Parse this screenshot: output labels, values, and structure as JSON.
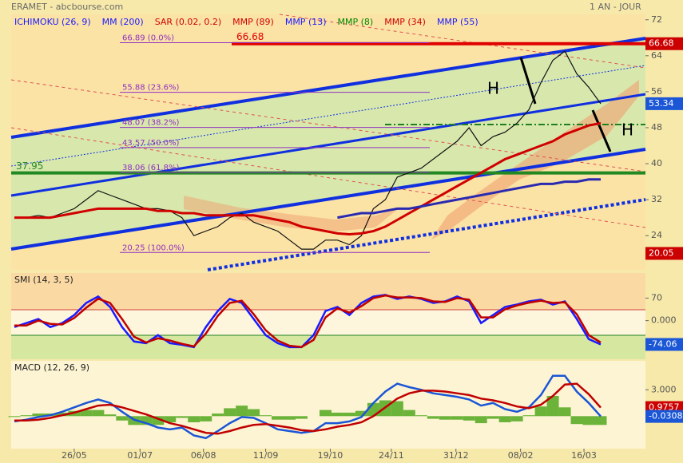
{
  "header": {
    "title": "ERAMET - abcbourse.com",
    "period": "1 AN - JOUR"
  },
  "chart_data": [
    {
      "type": "line",
      "panel": "price",
      "legend": [
        {
          "name": "ICHIMOKU (26, 9)",
          "color": "#1a1aff"
        },
        {
          "name": "MM (200)",
          "color": "#1a1aff"
        },
        {
          "name": "SAR (0.02, 0.2)",
          "color": "#d00000"
        },
        {
          "name": "MMP (89)",
          "color": "#d00000"
        },
        {
          "name": "MMP (13)",
          "color": "#1a1aff"
        },
        {
          "name": "MMP (8)",
          "color": "#008800"
        },
        {
          "name": "MMP (34)",
          "color": "#d00000"
        },
        {
          "name": "MMP (55)",
          "color": "#1a1aff"
        }
      ],
      "xticks": [
        {
          "value": 5,
          "label": "26/05"
        },
        {
          "value": 10.5,
          "label": "01/07"
        },
        {
          "value": 15.8,
          "label": "06/08"
        },
        {
          "value": 21,
          "label": "11/09"
        },
        {
          "value": 26.4,
          "label": "19/10"
        },
        {
          "value": 31.5,
          "label": "24/11"
        },
        {
          "value": 36.9,
          "label": "31/12"
        },
        {
          "value": 42.3,
          "label": "08/02"
        },
        {
          "value": 47.6,
          "label": "16/03"
        }
      ],
      "xlim": [
        0,
        49
      ],
      "ylim": [
        16.4,
        73.2
      ],
      "yticks": [
        24,
        32,
        40,
        48,
        56,
        64,
        72
      ],
      "series": [
        {
          "color": "#111111",
          "values": [
            28,
            28,
            28.5,
            28,
            29,
            30,
            32,
            34,
            33,
            32,
            31,
            30,
            30,
            29.5,
            28,
            24,
            25,
            26,
            28,
            29,
            27,
            26,
            25,
            23,
            21,
            21,
            23,
            23,
            22,
            24,
            30,
            32,
            37,
            38,
            39,
            41,
            43,
            45,
            48,
            44,
            46,
            47,
            49,
            52,
            58,
            63,
            65,
            60,
            57,
            53.34
          ]
        },
        {
          "color": "#d00000",
          "values": [
            28,
            28,
            28,
            28,
            28.5,
            29,
            29.5,
            30,
            30,
            30,
            30,
            30,
            29.5,
            29.5,
            29,
            29,
            28.5,
            28.5,
            28.5,
            28.5,
            28.5,
            28,
            27.5,
            27,
            26,
            25.5,
            25,
            24.5,
            24.3,
            24.5,
            25,
            26,
            27.5,
            29,
            30.5,
            32,
            33.5,
            35,
            36.5,
            38,
            39.5,
            41,
            42,
            43,
            44,
            45,
            46.5,
            47.5,
            48.5,
            49
          ]
        },
        {
          "color": "#2a2ab0",
          "values": [
            null,
            null,
            null,
            null,
            null,
            null,
            null,
            null,
            null,
            null,
            null,
            null,
            null,
            null,
            null,
            null,
            null,
            null,
            null,
            null,
            null,
            null,
            null,
            null,
            null,
            null,
            null,
            28,
            28.5,
            29,
            29,
            29.5,
            30,
            30,
            30.5,
            31,
            31.5,
            32,
            32.5,
            33,
            33.5,
            34,
            34.5,
            35,
            35.5,
            35.5,
            36,
            36,
            36.5,
            36.5
          ]
        }
      ],
      "levels": [
        {
          "value": 66.68,
          "label": "66.68",
          "color": "#e00000"
        },
        {
          "value": 37.95,
          "label": "37.95",
          "color": "#228822"
        }
      ],
      "fibonacci": [
        {
          "value": 66.89,
          "label": "66.89 (0.0%)"
        },
        {
          "value": 55.88,
          "label": "55.88 (23.6%)"
        },
        {
          "value": 48.07,
          "label": "48.07 (38.2%)"
        },
        {
          "value": 43.57,
          "label": "43.57 (50.0%)"
        },
        {
          "value": 38.06,
          "label": "38.06 (61.8%)"
        },
        {
          "value": 20.25,
          "label": "20.25 (100.0%)"
        }
      ],
      "value_boxes": [
        {
          "value": 66.68,
          "color": "#cc0000"
        },
        {
          "value": 53.34,
          "color": "#1a56d6"
        },
        {
          "value": 20.05,
          "color": "#cc0000"
        }
      ],
      "annotations": [
        "H",
        "H"
      ]
    },
    {
      "type": "line",
      "panel": "smi",
      "title": "SMI (14, 3, 5)",
      "ylim": [
        -120,
        148
      ],
      "yticks": [
        70,
        {
          "value": 0,
          "label": "0.000"
        }
      ],
      "series": [
        {
          "color": "#1a1aff",
          "values": [
            -20,
            -7.5,
            5,
            -20,
            -7.5,
            17.5,
            55,
            75,
            42.5,
            -20,
            -65,
            -70,
            -45,
            -70,
            -75,
            -82.5,
            -20,
            30,
            67.5,
            55,
            5,
            -45,
            -70,
            -82.5,
            -82.5,
            -45,
            30,
            42.5,
            17.5,
            55,
            75,
            80,
            67.5,
            75,
            67.5,
            55,
            60,
            75,
            60,
            -7.5,
            17.5,
            42.5,
            50,
            60,
            65,
            50,
            60,
            5,
            -57.5,
            -74.06
          ]
        },
        {
          "color": "#c00000",
          "values": [
            -15,
            -15,
            0,
            -10,
            -12,
            8,
            40,
            68,
            55,
            5,
            -50,
            -68,
            -55,
            -62,
            -72,
            -80,
            -40,
            15,
            55,
            62,
            20,
            -30,
            -62,
            -78,
            -82,
            -60,
            10,
            38,
            25,
            45,
            70,
            78,
            72,
            72,
            70,
            60,
            58,
            70,
            65,
            10,
            10,
            35,
            47,
            56,
            62,
            55,
            57,
            20,
            -45,
            -68
          ]
        }
      ],
      "value_boxes": [
        {
          "value": -74.06,
          "color": "#1a56d6"
        }
      ]
    },
    {
      "type": "line",
      "panel": "macd",
      "title": "MACD (12, 26, 9)",
      "ylim": [
        -3.7,
        6.3
      ],
      "yticks": [
        {
          "value": 3,
          "label": "3.000"
        }
      ],
      "series": [
        {
          "color": "#1a56d6",
          "values": [
            -0.6,
            -0.4,
            -0.1,
            0.1,
            0.5,
            1.0,
            1.5,
            1.9,
            1.5,
            0.5,
            -0.4,
            -0.8,
            -1.3,
            -1.5,
            -1.3,
            -2.2,
            -2.5,
            -1.7,
            -0.8,
            -0.1,
            -0.2,
            -0.8,
            -1.5,
            -1.7,
            -1.9,
            -1.7,
            -0.8,
            -0.8,
            -0.6,
            -0.1,
            1.5,
            2.8,
            3.7,
            3.3,
            3.0,
            2.6,
            2.4,
            2.2,
            1.9,
            1.2,
            1.5,
            0.8,
            0.5,
            1.0,
            2.4,
            4.6,
            4.6,
            2.8,
            1.5,
            -0.0308
          ]
        },
        {
          "color": "#c00000",
          "values": [
            -0.5,
            -0.5,
            -0.4,
            -0.2,
            0.1,
            0.4,
            0.8,
            1.2,
            1.3,
            1.0,
            0.6,
            0.2,
            -0.3,
            -0.8,
            -1.1,
            -1.5,
            -1.9,
            -2.0,
            -1.7,
            -1.3,
            -1.0,
            -0.9,
            -1.1,
            -1.3,
            -1.6,
            -1.7,
            -1.5,
            -1.2,
            -1.0,
            -0.7,
            0.0,
            1.0,
            2.0,
            2.6,
            2.9,
            2.9,
            2.8,
            2.6,
            2.4,
            2.0,
            1.8,
            1.5,
            1.1,
            0.9,
            1.3,
            2.3,
            3.6,
            3.7,
            2.5,
            0.9757
          ]
        }
      ],
      "histogram": {
        "color": "#6cb33a",
        "values": [
          -0.1,
          0.1,
          0.3,
          0.3,
          0.4,
          0.6,
          0.7,
          0.7,
          0.2,
          -0.5,
          -1.0,
          -1.0,
          -1.0,
          -0.7,
          -0.2,
          -0.7,
          -0.6,
          0.3,
          0.9,
          1.2,
          0.8,
          0.1,
          -0.4,
          -0.4,
          -0.3,
          0.0,
          0.7,
          0.4,
          0.4,
          0.6,
          1.5,
          1.8,
          1.7,
          0.7,
          0.1,
          -0.3,
          -0.4,
          -0.4,
          -0.5,
          -0.8,
          -0.3,
          -0.7,
          -0.6,
          0.1,
          1.1,
          2.3,
          1.0,
          -0.9,
          -1.0,
          -1.0
        ]
      },
      "value_boxes": [
        {
          "value": 0.9757,
          "color": "#cc0000"
        },
        {
          "value": -0.0308,
          "color": "#1a56d6"
        }
      ]
    }
  ]
}
